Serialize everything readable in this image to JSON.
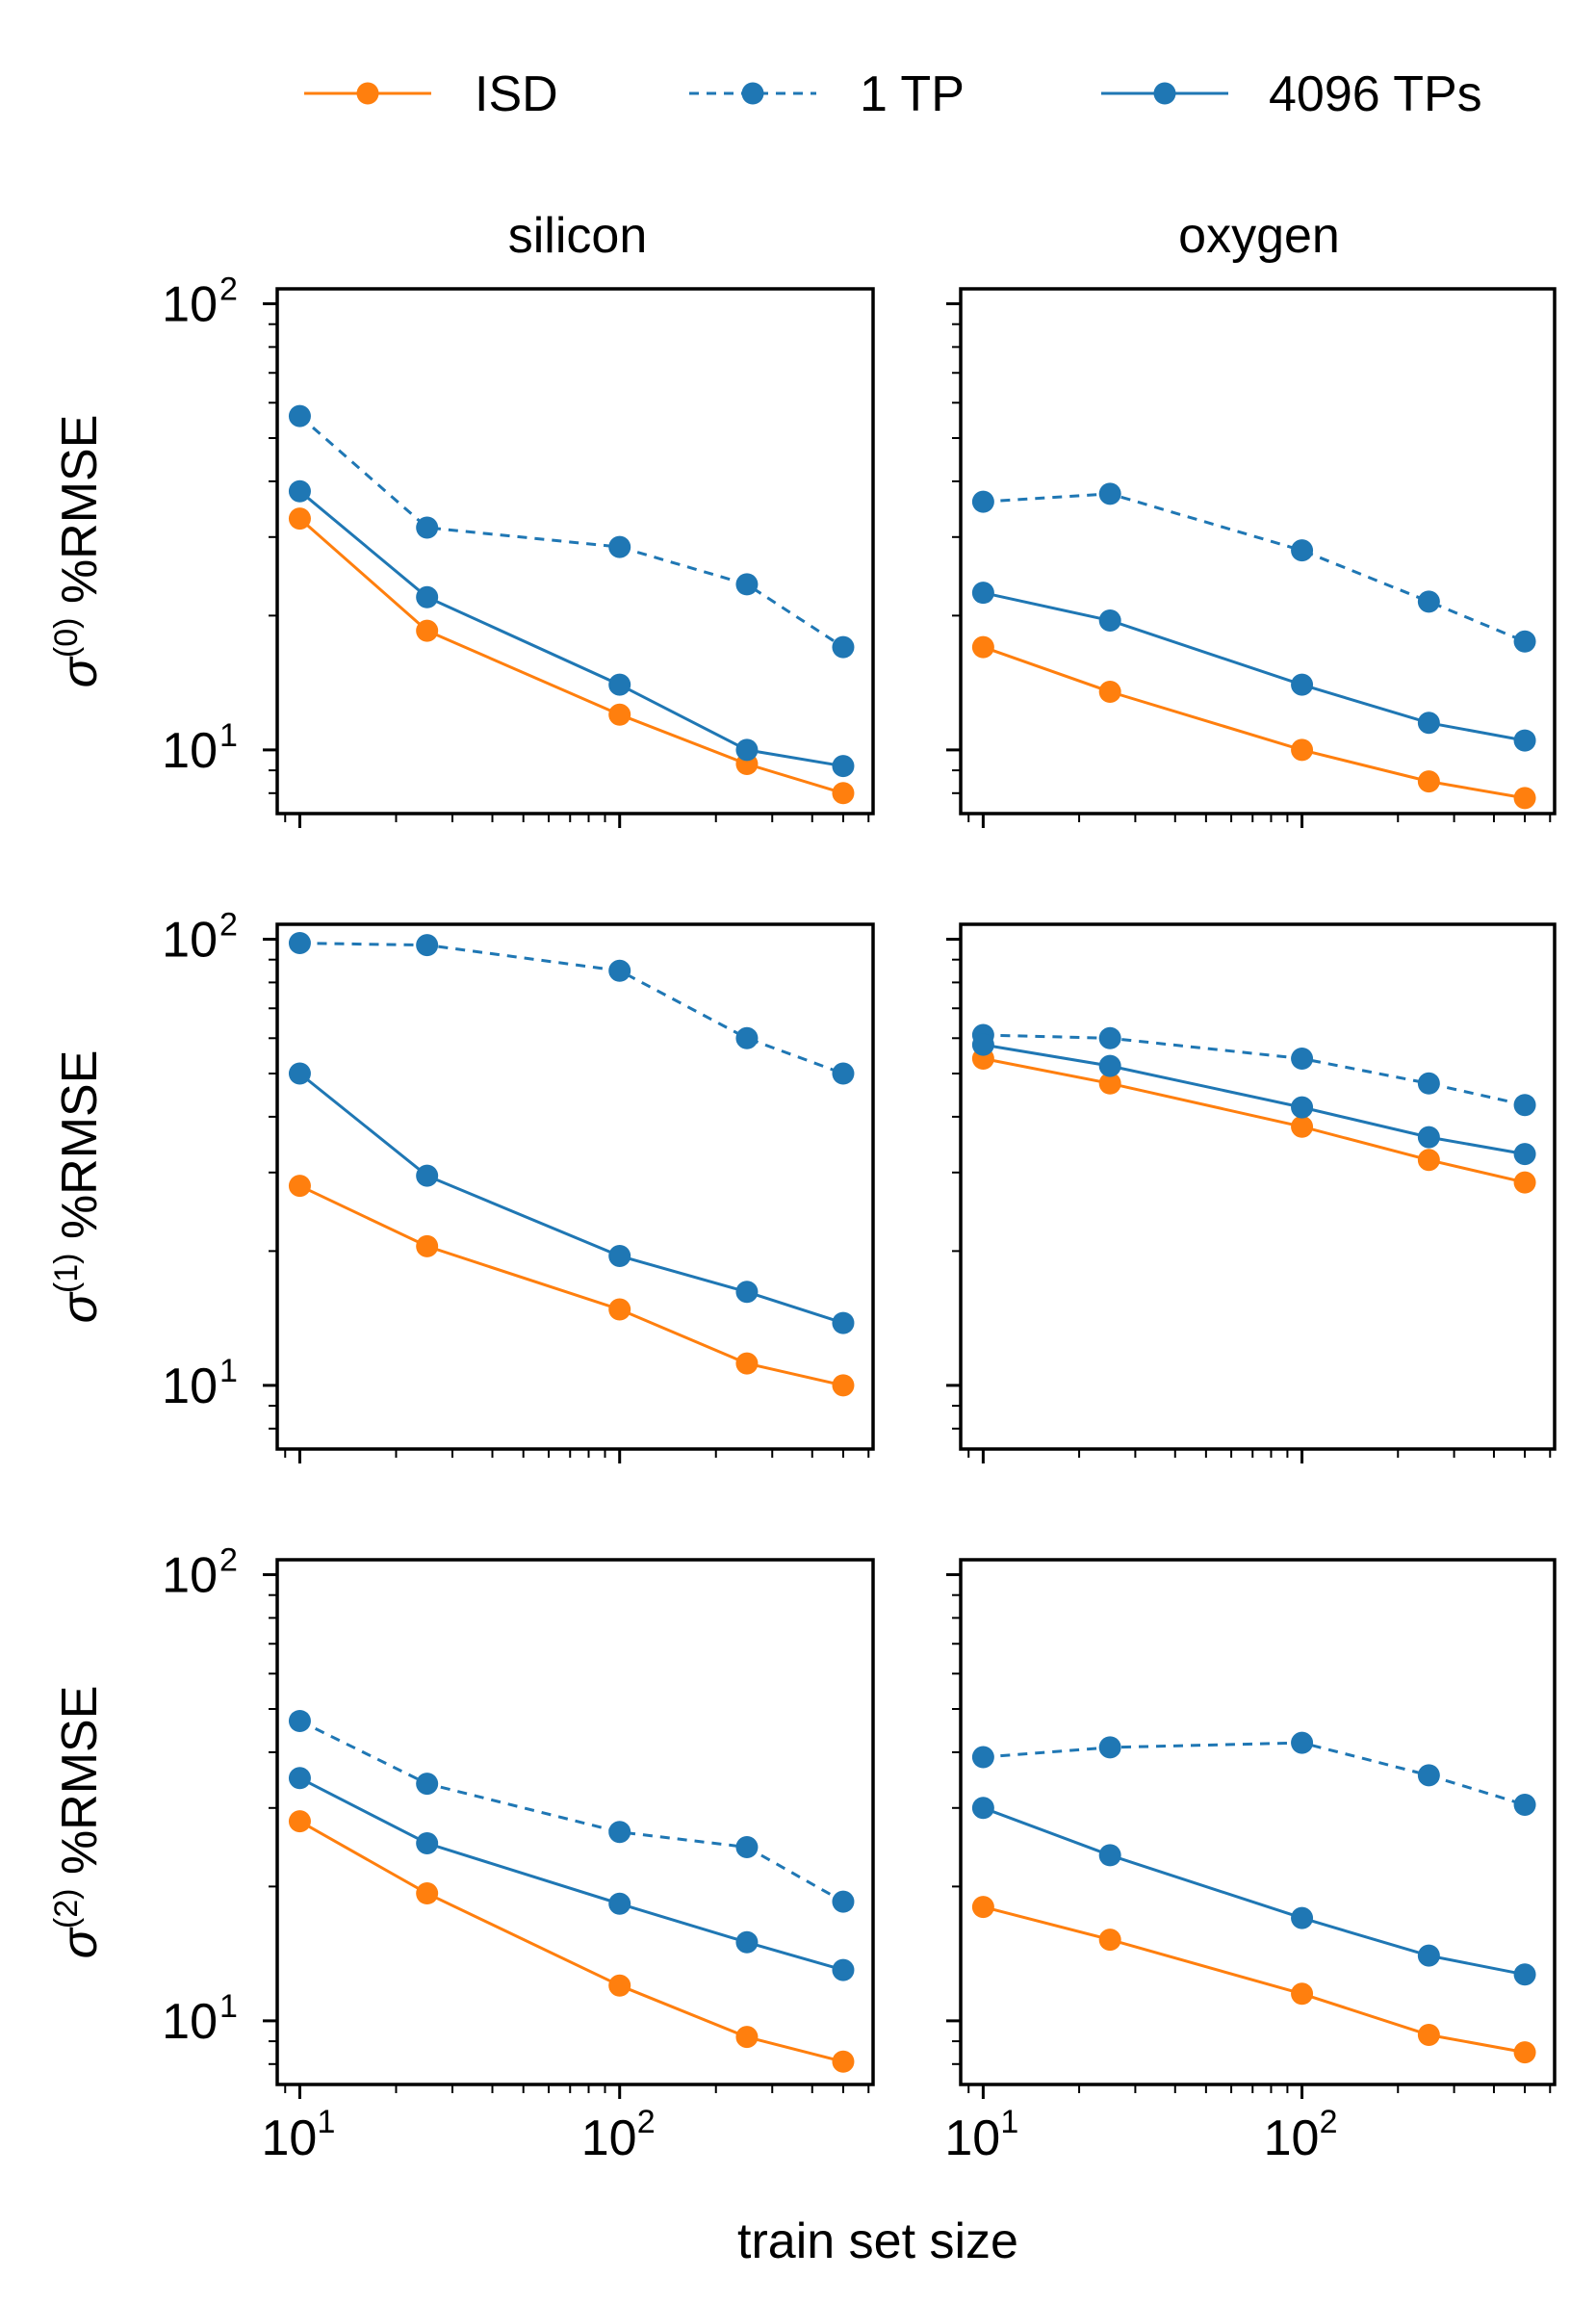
{
  "colors": {
    "isd": "#ff7f0e",
    "tp": "#1f77b4"
  },
  "legend": [
    {
      "key": "isd",
      "label": "ISD",
      "color": "#ff7f0e",
      "dash": false
    },
    {
      "key": "tp1",
      "label": "1 TP",
      "color": "#1f77b4",
      "dash": true
    },
    {
      "key": "tp4096",
      "label": "4096 TPs",
      "color": "#1f77b4",
      "dash": false
    }
  ],
  "columns": [
    "silicon",
    "oxygen"
  ],
  "y_labels": [
    {
      "sym": "σ",
      "sup": "(0)",
      "text": "%RMSE"
    },
    {
      "sym": "σ",
      "sup": "(1)",
      "text": "%RMSE"
    },
    {
      "sym": "σ",
      "sup": "(2)",
      "text": "%RMSE"
    }
  ],
  "x_label": "train set size",
  "tick_labels": {
    "base": "10",
    "x_exps": [
      "1",
      "2"
    ],
    "y_exps": [
      "1",
      "2"
    ]
  },
  "chart_data": [
    {
      "type": "line",
      "title": "silicon",
      "row": 0,
      "col": 0,
      "xscale": "log",
      "yscale": "log",
      "xlim": [
        8.5,
        620
      ],
      "ylim": [
        7.2,
        108
      ],
      "x": [
        10,
        25,
        100,
        250,
        500
      ],
      "series": [
        {
          "name": "ISD",
          "values": [
            33,
            18.5,
            12,
            9.3,
            8
          ]
        },
        {
          "name": "1 TP",
          "values": [
            56,
            31.5,
            28.5,
            23.5,
            17
          ]
        },
        {
          "name": "4096 TPs",
          "values": [
            38,
            22,
            14,
            10,
            9.2
          ]
        }
      ]
    },
    {
      "type": "line",
      "title": "oxygen",
      "row": 0,
      "col": 1,
      "xscale": "log",
      "yscale": "log",
      "xlim": [
        8.5,
        620
      ],
      "ylim": [
        7.2,
        108
      ],
      "x": [
        10,
        25,
        100,
        250,
        500
      ],
      "series": [
        {
          "name": "ISD",
          "values": [
            17,
            13.5,
            10,
            8.5,
            7.8
          ]
        },
        {
          "name": "1 TP",
          "values": [
            36,
            37.5,
            28,
            21.5,
            17.5
          ]
        },
        {
          "name": "4096 TPs",
          "values": [
            22.5,
            19.5,
            14,
            11.5,
            10.5
          ]
        }
      ]
    },
    {
      "type": "line",
      "title": "silicon",
      "row": 1,
      "col": 0,
      "xscale": "log",
      "yscale": "log",
      "xlim": [
        8.5,
        620
      ],
      "ylim": [
        7.2,
        108
      ],
      "x": [
        10,
        25,
        100,
        250,
        500
      ],
      "series": [
        {
          "name": "ISD",
          "values": [
            28,
            20.5,
            14.8,
            11.2,
            10
          ]
        },
        {
          "name": "1 TP",
          "values": [
            98,
            97,
            85,
            60,
            50
          ]
        },
        {
          "name": "4096 TPs",
          "values": [
            50,
            29.5,
            19.5,
            16.2,
            13.8
          ]
        }
      ]
    },
    {
      "type": "line",
      "title": "oxygen",
      "row": 1,
      "col": 1,
      "xscale": "log",
      "yscale": "log",
      "xlim": [
        8.5,
        620
      ],
      "ylim": [
        7.2,
        108
      ],
      "x": [
        10,
        25,
        100,
        250,
        500
      ],
      "series": [
        {
          "name": "ISD",
          "values": [
            54,
            47.5,
            38,
            32,
            28.5
          ]
        },
        {
          "name": "1 TP",
          "values": [
            61,
            60,
            54,
            47.5,
            42.5
          ]
        },
        {
          "name": "4096 TPs",
          "values": [
            58,
            52,
            42,
            36,
            33
          ]
        }
      ]
    },
    {
      "type": "line",
      "title": "silicon",
      "row": 2,
      "col": 0,
      "xscale": "log",
      "yscale": "log",
      "xlim": [
        8.5,
        620
      ],
      "ylim": [
        7.2,
        108
      ],
      "x": [
        10,
        25,
        100,
        250,
        500
      ],
      "series": [
        {
          "name": "ISD",
          "values": [
            28,
            19.3,
            12,
            9.2,
            8.1
          ]
        },
        {
          "name": "1 TP",
          "values": [
            47,
            34,
            26.5,
            24.5,
            18.5
          ]
        },
        {
          "name": "4096 TPs",
          "values": [
            35,
            25,
            18.3,
            15,
            13
          ]
        }
      ]
    },
    {
      "type": "line",
      "title": "oxygen",
      "row": 2,
      "col": 1,
      "xscale": "log",
      "yscale": "log",
      "xlim": [
        8.5,
        620
      ],
      "ylim": [
        7.2,
        108
      ],
      "x": [
        10,
        25,
        100,
        250,
        500
      ],
      "series": [
        {
          "name": "ISD",
          "values": [
            18,
            15.2,
            11.5,
            9.3,
            8.5
          ]
        },
        {
          "name": "1 TP",
          "values": [
            39,
            41,
            42,
            35.5,
            30.5
          ]
        },
        {
          "name": "4096 TPs",
          "values": [
            30,
            23.5,
            17,
            14,
            12.7
          ]
        }
      ]
    }
  ]
}
